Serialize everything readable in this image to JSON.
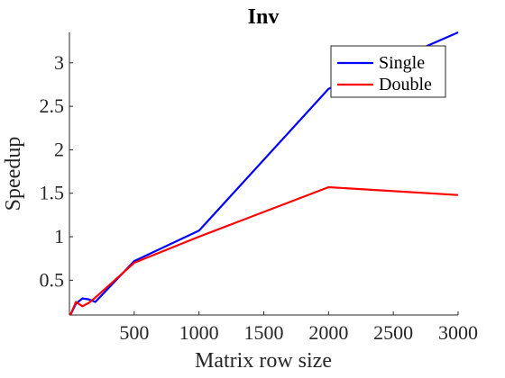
{
  "chart_data": {
    "type": "line",
    "title": "Inv",
    "xlabel": "Matrix row size",
    "ylabel": "Speedup",
    "xlim": [
      0,
      3000
    ],
    "ylim": [
      0.1,
      3.35
    ],
    "xticks": [
      500,
      1000,
      1500,
      2000,
      2500,
      3000
    ],
    "xtick_labels": [
      "500",
      "1000",
      "1500",
      "2000",
      "2500",
      "3000"
    ],
    "yticks": [
      0.5,
      1,
      1.5,
      2,
      2.5,
      3
    ],
    "ytick_labels": [
      "0.5",
      "1",
      "1.5",
      "2",
      "2.5",
      "3"
    ],
    "grid": false,
    "legend_position": "top-right",
    "series": [
      {
        "name": "Single",
        "color": "#0000ff",
        "x": [
          8,
          50,
          100,
          150,
          200,
          500,
          1000,
          2000,
          3000
        ],
        "y": [
          0.1,
          0.23,
          0.29,
          0.28,
          0.25,
          0.72,
          1.07,
          2.7,
          3.35
        ]
      },
      {
        "name": "Double",
        "color": "#ff0000",
        "x": [
          8,
          50,
          100,
          150,
          200,
          500,
          1000,
          2000,
          3000
        ],
        "y": [
          0.1,
          0.25,
          0.2,
          0.24,
          0.3,
          0.7,
          1.0,
          1.57,
          1.48
        ]
      }
    ]
  }
}
